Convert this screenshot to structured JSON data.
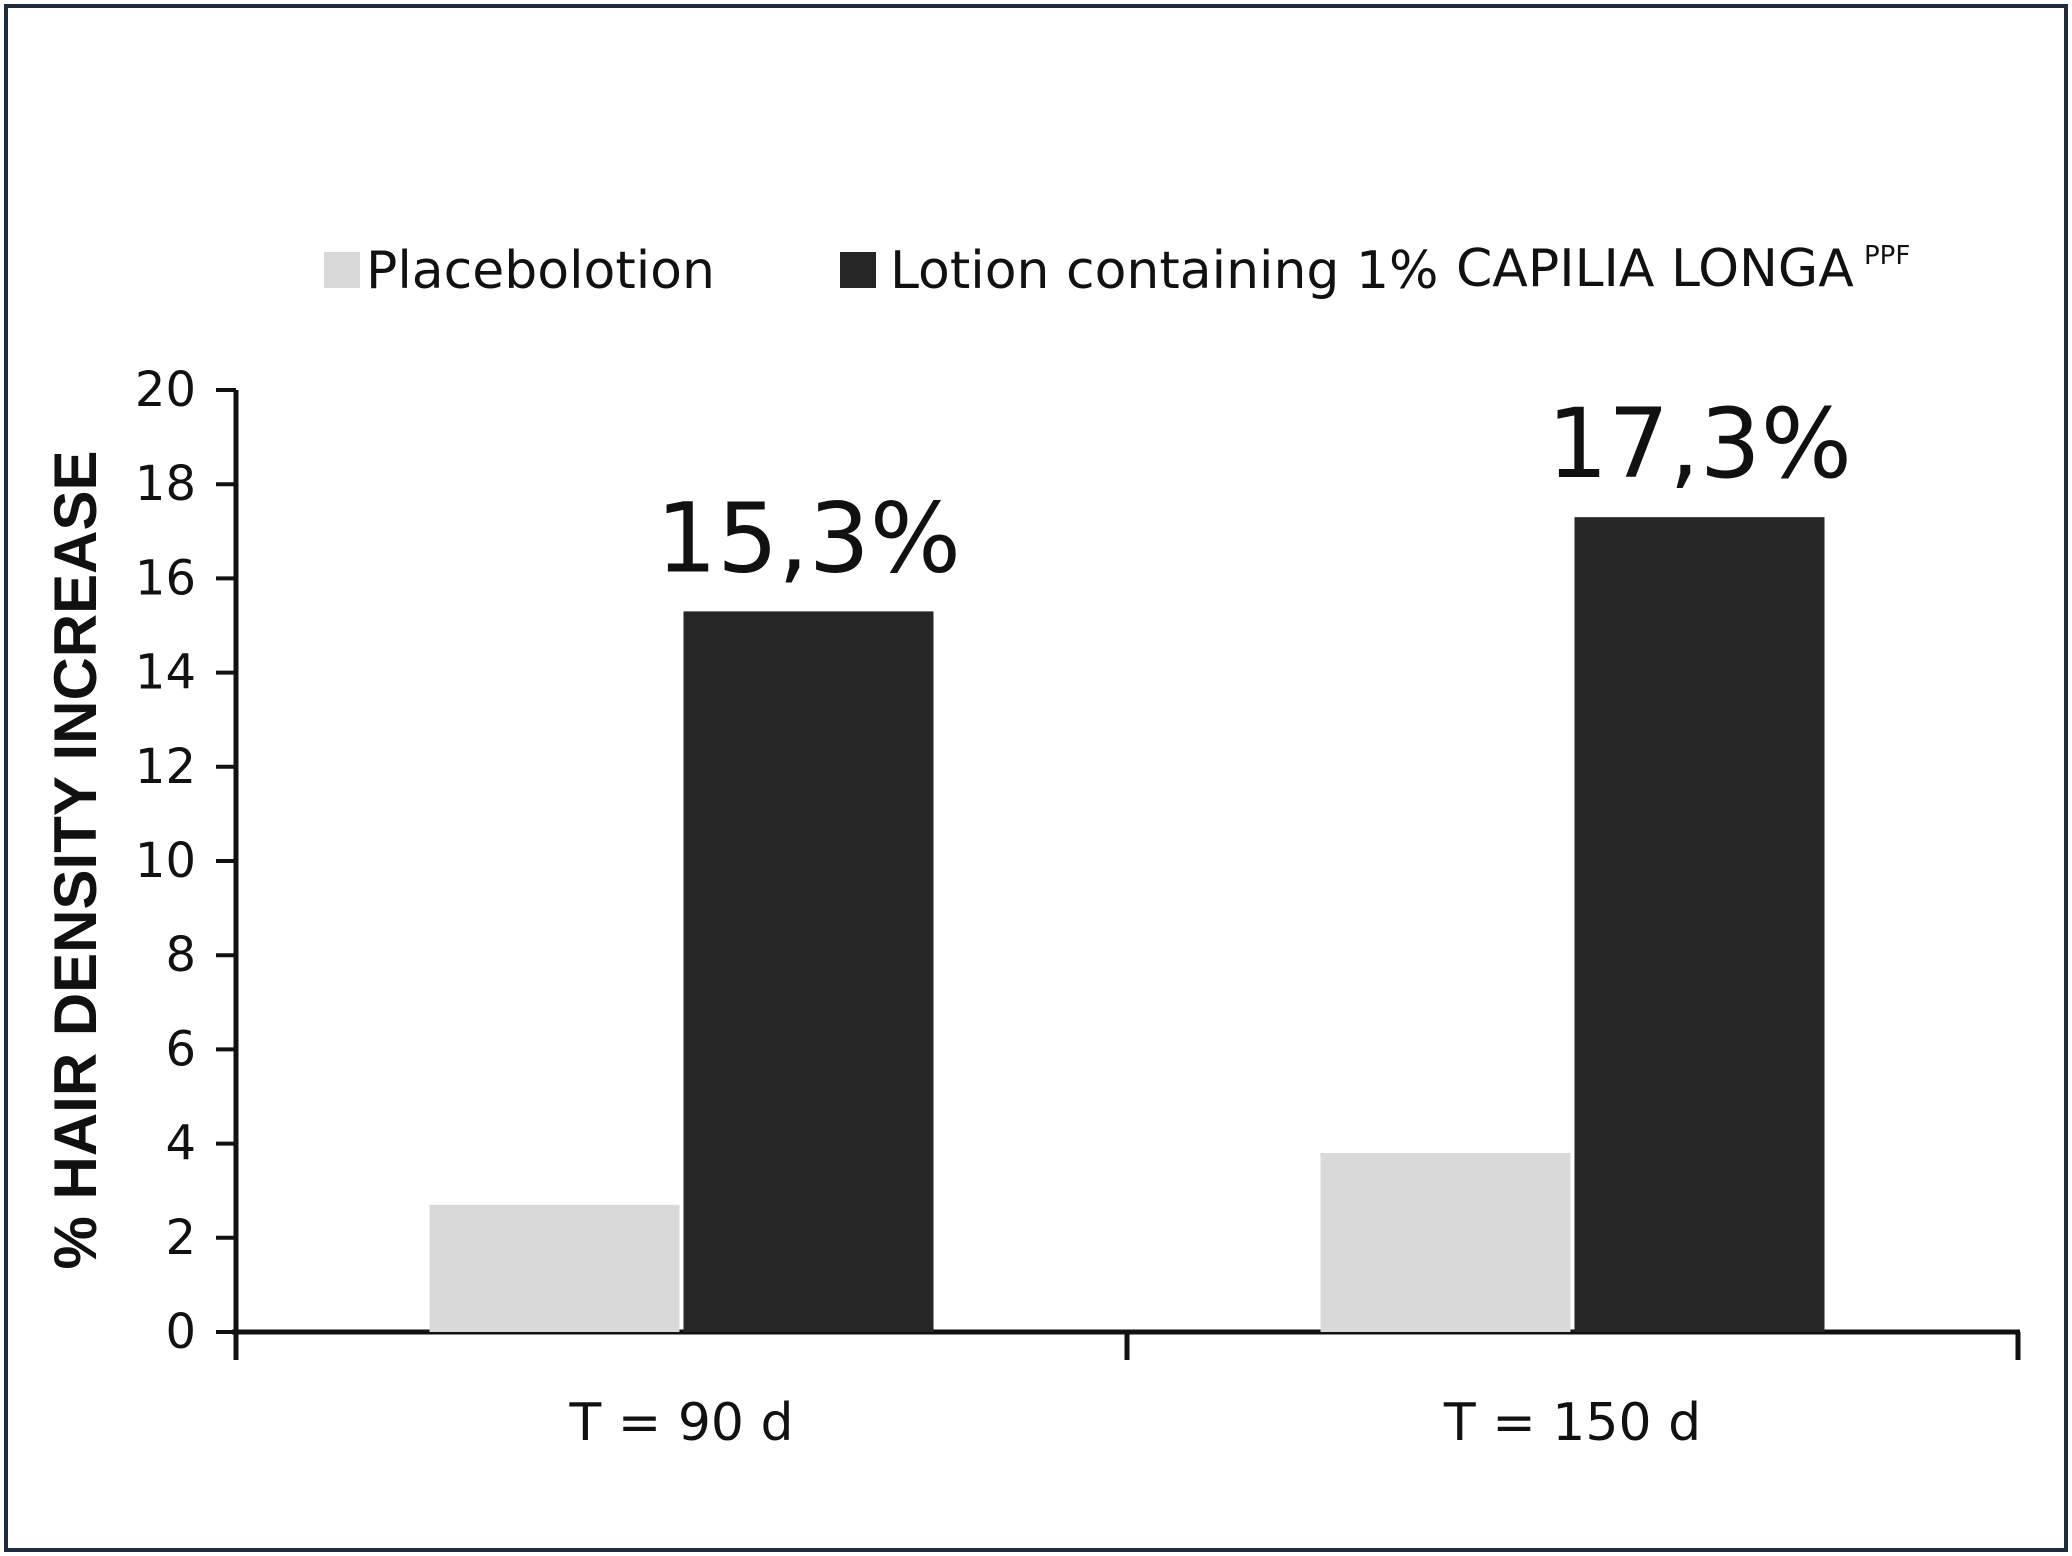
{
  "chart_data": {
    "type": "bar",
    "title": "",
    "ylabel": "% HAIR DENSITY INCREASE",
    "xlabel": "",
    "ylim": [
      0,
      20
    ],
    "yticks": [
      0,
      2,
      4,
      6,
      8,
      10,
      12,
      14,
      16,
      18,
      20
    ],
    "categories": [
      "T = 90 d",
      "T = 150 d"
    ],
    "series": [
      {
        "name": "Placebolotion",
        "values": [
          2.7,
          3.8
        ],
        "color": "#d9d9d9"
      },
      {
        "name": "Lotion containing 1%",
        "values": [
          15.3,
          17.3
        ],
        "color": "#262626"
      }
    ],
    "legend": {
      "placement": "top",
      "product_name": "CAPILIA LONGA",
      "product_sup": "PPF"
    },
    "data_labels": [
      "15,3%",
      "17,3%"
    ],
    "grid": false
  }
}
